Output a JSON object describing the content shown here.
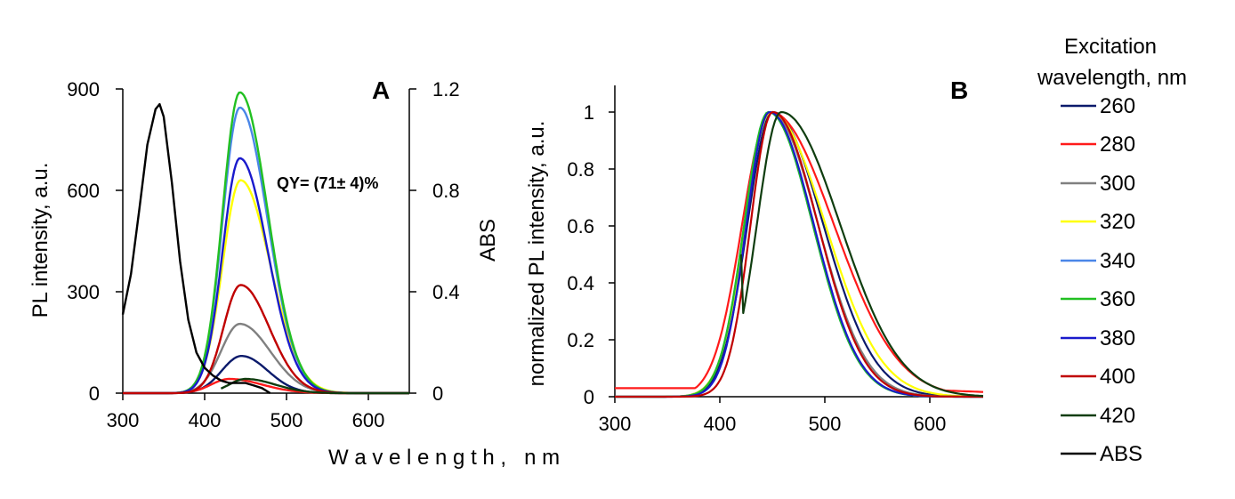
{
  "figure": {
    "shared_xlabel": "W a v e l e n g t h ,   n m"
  },
  "legend": {
    "title_line1": "Excitation",
    "title_line2": "wavelength, nm",
    "entries": [
      {
        "label": "260",
        "color": "#0b1a6b"
      },
      {
        "label": "280",
        "color": "#ff1a1a"
      },
      {
        "label": "300",
        "color": "#808080"
      },
      {
        "label": "320",
        "color": "#ffff00"
      },
      {
        "label": "340",
        "color": "#4a86e8"
      },
      {
        "label": "360",
        "color": "#22c022"
      },
      {
        "label": "380",
        "color": "#1a1acc"
      },
      {
        "label": "400",
        "color": "#c00000"
      },
      {
        "label": "420",
        "color": "#0f3d0f"
      },
      {
        "label": "ABS",
        "color": "#000000"
      }
    ]
  },
  "chart_data": [
    {
      "panel_label": "A",
      "type": "line",
      "ylabel": "PL intensity, a.u.",
      "y2label": "ABS",
      "annotation": "QY= (71± 4)%",
      "xlim": [
        300,
        650
      ],
      "ylim": [
        0,
        900
      ],
      "y2lim": [
        0,
        1.2
      ],
      "xticks": [
        "300",
        "400",
        "500",
        "600"
      ],
      "yticks": [
        "0",
        "300",
        "600",
        "900"
      ],
      "y2ticks": [
        "0",
        "0.4",
        "0.8",
        "1.2"
      ],
      "series": [
        {
          "name": "260",
          "color": "#0b1a6b",
          "peak": 445,
          "amp": 110,
          "sl": 24,
          "sr": 32
        },
        {
          "name": "280",
          "color": "#ff1a1a",
          "peak": 430,
          "amp": 42,
          "sl": 22,
          "sr": 40
        },
        {
          "name": "300",
          "color": "#808080",
          "peak": 443,
          "amp": 205,
          "sl": 23,
          "sr": 37
        },
        {
          "name": "320",
          "color": "#ffff00",
          "peak": 444,
          "amp": 630,
          "sl": 22,
          "sr": 36
        },
        {
          "name": "340",
          "color": "#4a86e8",
          "peak": 443,
          "amp": 845,
          "sl": 21,
          "sr": 34
        },
        {
          "name": "360",
          "color": "#22c022",
          "peak": 443,
          "amp": 890,
          "sl": 21,
          "sr": 34
        },
        {
          "name": "380",
          "color": "#1a1acc",
          "peak": 443,
          "amp": 695,
          "sl": 21,
          "sr": 34
        },
        {
          "name": "400",
          "color": "#c00000",
          "peak": 444,
          "amp": 320,
          "sl": 21,
          "sr": 35
        },
        {
          "name": "420",
          "color": "#0f3d0f",
          "peak": 450,
          "amp": 42,
          "sl": 20,
          "sr": 36,
          "start": 420
        },
        {
          "name": "ABS",
          "axis": "y2",
          "color": "#000000",
          "x": [
            300,
            310,
            320,
            330,
            340,
            345,
            350,
            360,
            370,
            380,
            390,
            400,
            410,
            420,
            430,
            440,
            450,
            460,
            470,
            480
          ],
          "y": [
            0.31,
            0.47,
            0.72,
            0.98,
            1.12,
            1.14,
            1.09,
            0.83,
            0.52,
            0.29,
            0.16,
            0.1,
            0.07,
            0.05,
            0.04,
            0.04,
            0.04,
            0.03,
            0.02,
            0.0
          ]
        }
      ]
    },
    {
      "panel_label": "B",
      "type": "line",
      "ylabel": "normalized PL intensity, a.u.",
      "xlim": [
        300,
        650
      ],
      "ylim": [
        0,
        1.0
      ],
      "xticks": [
        "300",
        "400",
        "500",
        "600"
      ],
      "yticks": [
        "0",
        "0.2",
        "0.4",
        "0.6",
        "0.8",
        "1"
      ],
      "series": [
        {
          "name": "260",
          "color": "#0b1a6b",
          "peak": 450,
          "sl": 24,
          "sr": 48,
          "base": 0.0
        },
        {
          "name": "280",
          "color": "#ff1a1a",
          "peak": 448,
          "sl": 27,
          "sr": 60,
          "base": 0.03,
          "start": 300
        },
        {
          "name": "300",
          "color": "#808080",
          "peak": 448,
          "sl": 24,
          "sr": 45,
          "base": 0.0
        },
        {
          "name": "320",
          "color": "#ffff00",
          "peak": 448,
          "sl": 24,
          "sr": 52,
          "base": 0.0
        },
        {
          "name": "340",
          "color": "#4a86e8",
          "peak": 446,
          "sl": 23,
          "sr": 42,
          "base": 0.0
        },
        {
          "name": "360",
          "color": "#22c022",
          "peak": 446,
          "sl": 23,
          "sr": 42,
          "base": 0.0
        },
        {
          "name": "380",
          "color": "#1a1acc",
          "peak": 447,
          "sl": 22,
          "sr": 42,
          "base": 0.0
        },
        {
          "name": "400",
          "color": "#c00000",
          "peak": 450,
          "sl": 21,
          "sr": 43,
          "base": 0.0
        },
        {
          "name": "420",
          "color": "#0f3d0f",
          "peak": 458,
          "sl": 23,
          "sr": 56,
          "base": 0.0,
          "start": 420
        }
      ]
    }
  ]
}
